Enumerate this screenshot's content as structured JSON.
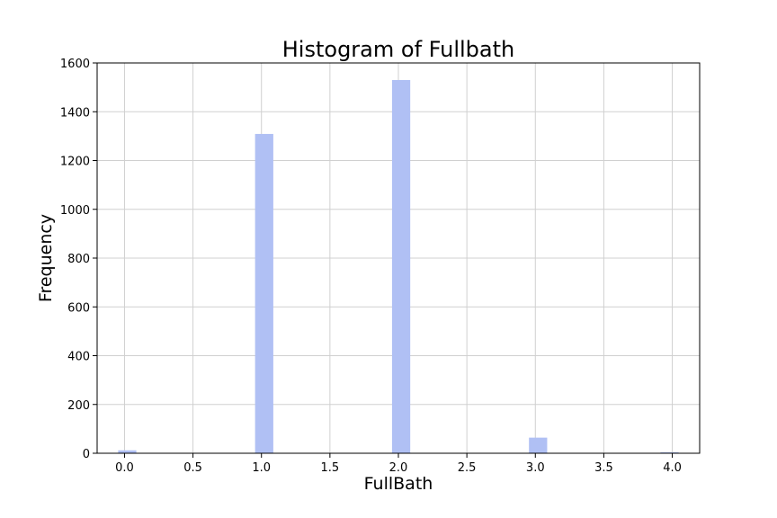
{
  "chart_data": {
    "type": "bar",
    "title": "Histogram of Fullbath",
    "xlabel": "FullBath",
    "ylabel": "Frequency",
    "xlim": [
      -0.2,
      4.2
    ],
    "ylim": [
      0,
      1600
    ],
    "grid": true,
    "bar_color": "#b0c0f4",
    "bin_width": 0.133,
    "x_ticks": [
      "0.0",
      "0.5",
      "1.0",
      "1.5",
      "2.0",
      "2.5",
      "3.0",
      "3.5",
      "4.0"
    ],
    "y_ticks": [
      "0",
      "200",
      "400",
      "600",
      "800",
      "1000",
      "1200",
      "1400",
      "1600"
    ],
    "bars": [
      {
        "x": 0.0,
        "value": 12
      },
      {
        "x": 1.0,
        "value": 1309
      },
      {
        "x": 2.0,
        "value": 1530
      },
      {
        "x": 3.0,
        "value": 64
      },
      {
        "x": 4.0,
        "value": 4
      }
    ]
  }
}
